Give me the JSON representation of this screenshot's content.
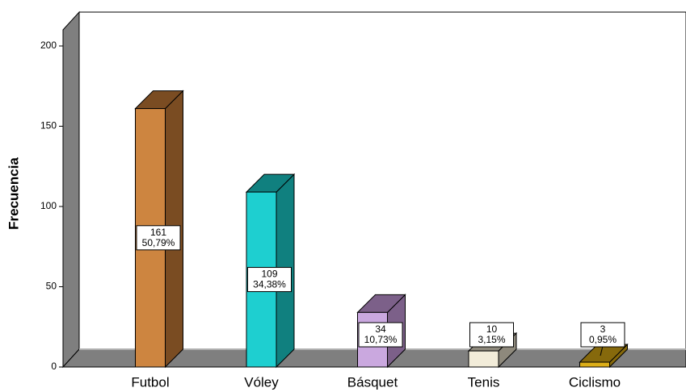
{
  "chart_data": {
    "type": "bar3d",
    "ylabel": "Frecuencia",
    "categories": [
      "Futbol",
      "Vóley",
      "Básquet",
      "Tenis",
      "Ciclismo"
    ],
    "values": [
      161,
      109,
      34,
      10,
      3
    ],
    "percent_labels": [
      "50,79%",
      "34,38%",
      "10,73%",
      "3,15%",
      "0,95%"
    ],
    "colors": [
      "#cd8540",
      "#1ecfd0",
      "#caa8df",
      "#f2ecd9",
      "#dcae18"
    ],
    "side_colors": [
      "#7a4c22",
      "#10807f",
      "#7c6089",
      "#8e897c",
      "#86690c"
    ],
    "ylim": [
      0,
      200
    ],
    "yticks": [
      0,
      50,
      100,
      150,
      200
    ],
    "grid": false
  }
}
